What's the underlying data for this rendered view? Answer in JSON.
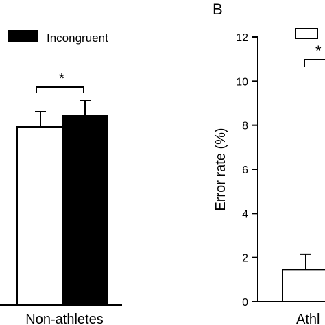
{
  "panel_b_label": "B",
  "legend": {
    "incongruent_label": "Incongruent",
    "incongruent_color": "#000000"
  },
  "chart_data": [
    {
      "type": "bar",
      "categories": [
        "Non-athletes"
      ],
      "series": [
        {
          "name": "Incongruent",
          "fill": "#000000",
          "values": [
            null
          ],
          "errors": [
            null
          ]
        }
      ],
      "significance": [
        {
          "label": "*"
        }
      ]
    },
    {
      "type": "bar",
      "panel": "B",
      "ylabel": "Error rate (%)",
      "ylim": [
        0,
        12
      ],
      "yticks": [
        0,
        2,
        4,
        6,
        8,
        10,
        12
      ],
      "categories": [
        "Athl"
      ],
      "series": [
        {
          "fill": "#ffffff",
          "values": [
            1.45
          ],
          "errors": [
            0.7
          ]
        }
      ],
      "significance": [
        {
          "label": "*"
        }
      ]
    }
  ]
}
